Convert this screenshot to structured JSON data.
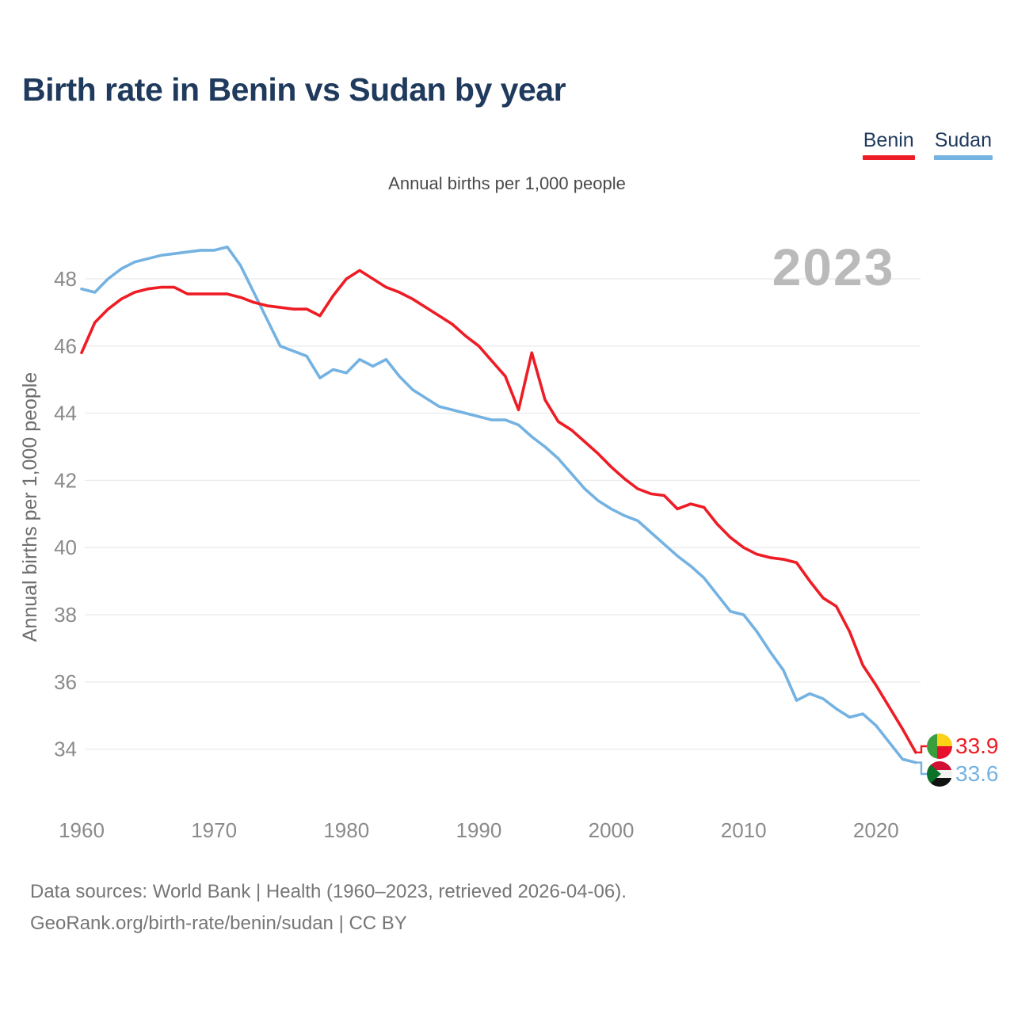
{
  "header": {
    "title": "Birth rate in Benin vs Sudan by year"
  },
  "legend": [
    {
      "label": "Benin"
    },
    {
      "label": "Sudan"
    }
  ],
  "subtitle": "Annual births per 1,000 people",
  "y_axis_title": "Annual births per 1,000 people",
  "watermark": "2023",
  "footer": {
    "line1": "Data sources: World Bank | Health (1960–2023, retrieved 2026-04-06).",
    "line2": "GeoRank.org/birth-rate/benin/sudan | CC BY"
  },
  "chart_data": {
    "type": "line",
    "title": "Birth rate in Benin vs Sudan by year",
    "ylabel": "Annual births per 1,000 people",
    "xlabel": "",
    "grid": "horizontal",
    "legend_position": "top-right",
    "ylim": [
      33.2,
      49.4
    ],
    "yticks": [
      34,
      36,
      38,
      40,
      42,
      44,
      46,
      48
    ],
    "xticks": [
      1960,
      1970,
      1980,
      1990,
      2000,
      2010,
      2020
    ],
    "x": [
      1960,
      1961,
      1962,
      1963,
      1964,
      1965,
      1966,
      1967,
      1968,
      1969,
      1970,
      1971,
      1972,
      1973,
      1974,
      1975,
      1976,
      1977,
      1978,
      1979,
      1980,
      1981,
      1982,
      1983,
      1984,
      1985,
      1986,
      1987,
      1988,
      1989,
      1990,
      1991,
      1992,
      1993,
      1994,
      1995,
      1996,
      1997,
      1998,
      1999,
      2000,
      2001,
      2002,
      2003,
      2004,
      2005,
      2006,
      2007,
      2008,
      2009,
      2010,
      2011,
      2012,
      2013,
      2014,
      2015,
      2016,
      2017,
      2018,
      2019,
      2020,
      2021,
      2022,
      2023
    ],
    "series": [
      {
        "name": "Benin",
        "color": "#ee1c25",
        "values": [
          45.8,
          46.7,
          47.1,
          47.4,
          47.6,
          47.7,
          47.75,
          47.75,
          47.55,
          47.55,
          47.55,
          47.55,
          47.45,
          47.3,
          47.2,
          47.15,
          47.1,
          47.1,
          46.9,
          47.5,
          48.0,
          48.25,
          48.0,
          47.75,
          47.6,
          47.4,
          47.15,
          46.9,
          46.65,
          46.3,
          46.0,
          45.55,
          45.1,
          44.1,
          45.8,
          44.4,
          43.75,
          43.5,
          43.15,
          42.8,
          42.4,
          42.05,
          41.75,
          41.6,
          41.55,
          41.15,
          41.3,
          41.2,
          40.7,
          40.3,
          40.0,
          39.8,
          39.7,
          39.65,
          39.55,
          39.0,
          38.5,
          38.25,
          37.5,
          36.5,
          35.9,
          35.25,
          34.6,
          33.9
        ]
      },
      {
        "name": "Sudan",
        "color": "#74b2e2",
        "values": [
          47.7,
          47.6,
          48.0,
          48.3,
          48.5,
          48.6,
          48.7,
          48.75,
          48.8,
          48.85,
          48.85,
          48.95,
          48.4,
          47.6,
          46.8,
          46.0,
          45.85,
          45.7,
          45.05,
          45.3,
          45.2,
          45.6,
          45.4,
          45.6,
          45.1,
          44.7,
          44.45,
          44.2,
          44.1,
          44.0,
          43.9,
          43.8,
          43.8,
          43.65,
          43.3,
          43.0,
          42.65,
          42.2,
          41.75,
          41.4,
          41.15,
          40.95,
          40.8,
          40.45,
          40.1,
          39.75,
          39.45,
          39.1,
          38.6,
          38.1,
          38.0,
          37.5,
          36.9,
          36.35,
          35.45,
          35.65,
          35.5,
          35.2,
          34.95,
          35.05,
          34.7,
          34.2,
          33.7,
          33.6
        ]
      }
    ],
    "end_labels": [
      {
        "name": "Benin",
        "value": "33.9",
        "flag": "benin-flag-icon"
      },
      {
        "name": "Sudan",
        "value": "33.6",
        "flag": "sudan-flag-icon"
      }
    ],
    "flag_colors": {
      "benin": {
        "green": "#3a9e3f",
        "yellow": "#fcd116",
        "red": "#e8112d"
      },
      "sudan": {
        "red": "#d21034",
        "white": "#f2f2f2",
        "black": "#111111",
        "green": "#0b7229"
      }
    },
    "style": {
      "grid_color": "#ebebeb",
      "tick_color": "#8a8a8a",
      "axis_title_color": "#6e6e6e",
      "watermark_color": "#bababa"
    }
  }
}
